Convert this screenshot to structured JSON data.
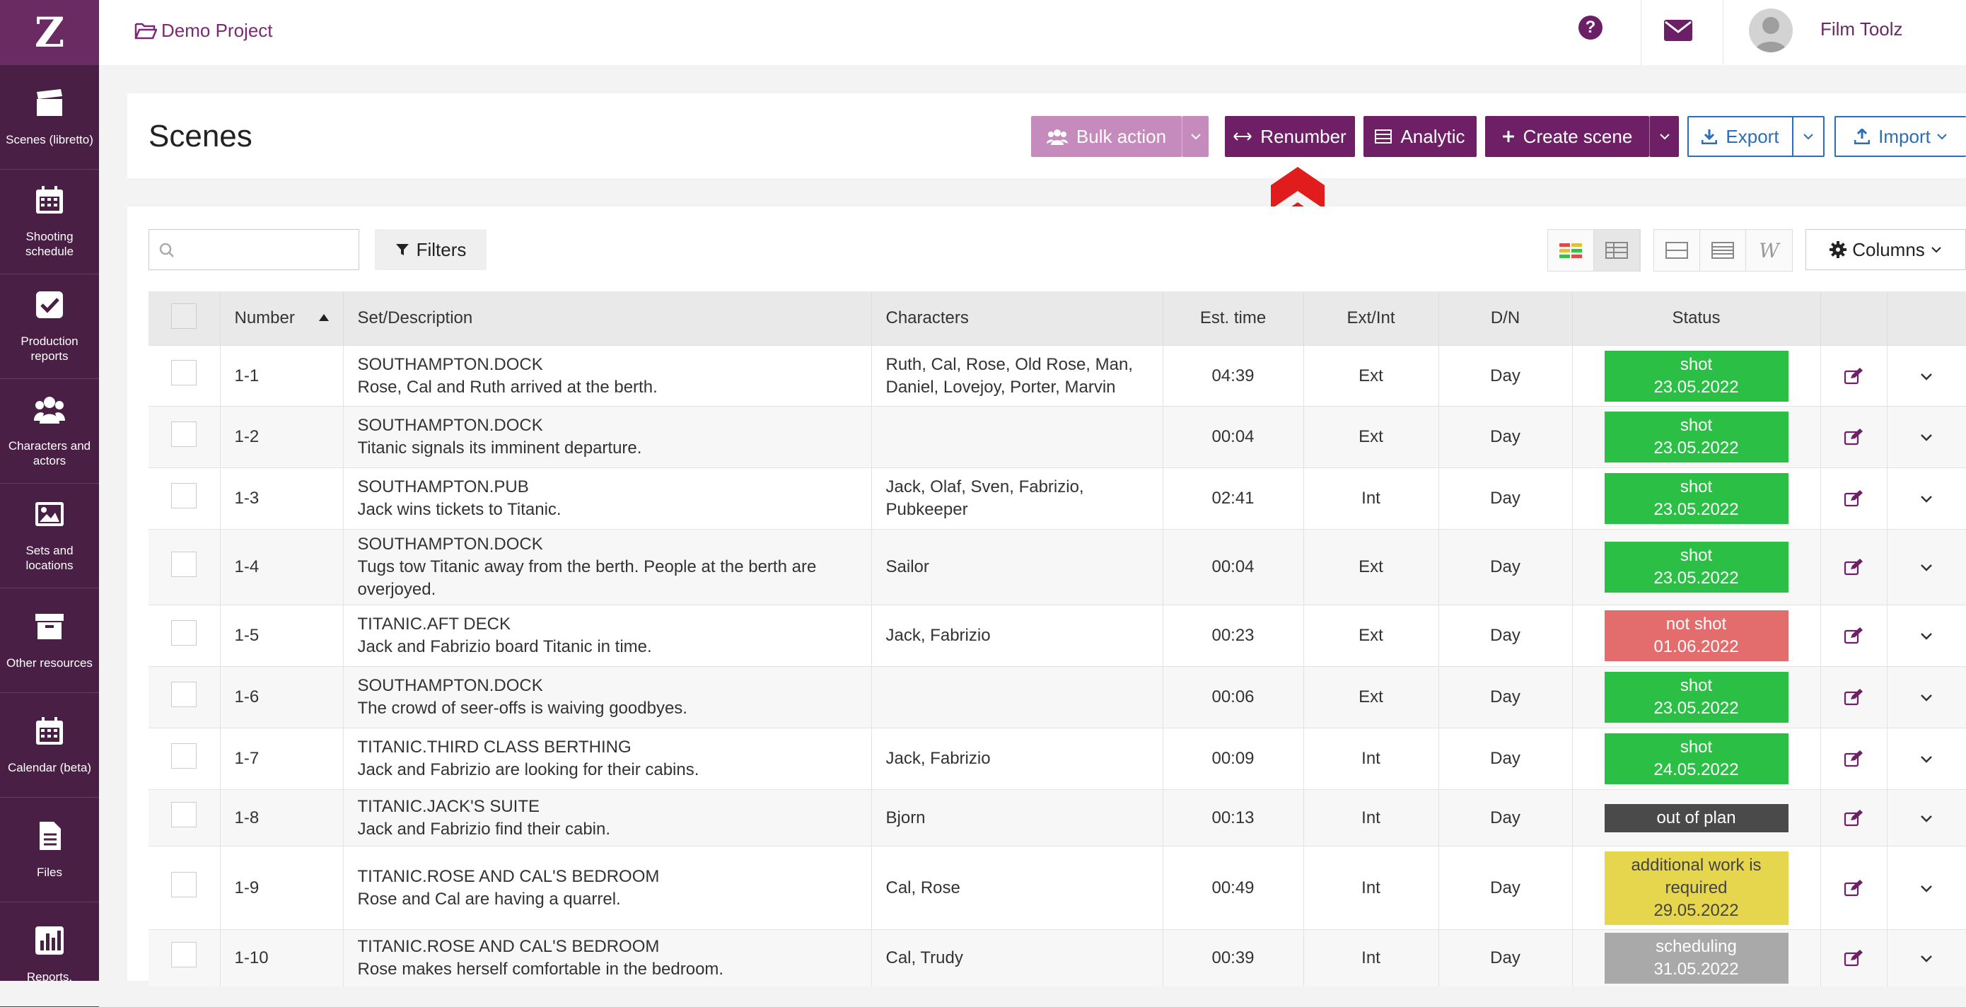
{
  "brand_logo": "Z",
  "sidebar": {
    "items": [
      {
        "label": "Scenes (libretto)",
        "icon": "clapperboard-icon"
      },
      {
        "label": "Shooting schedule",
        "icon": "calendar-icon"
      },
      {
        "label": "Production reports",
        "icon": "checkbox-icon"
      },
      {
        "label": "Characters and actors",
        "icon": "users-icon"
      },
      {
        "label": "Sets and locations",
        "icon": "image-icon"
      },
      {
        "label": "Other resources",
        "icon": "archive-icon"
      },
      {
        "label": "Calendar (beta)",
        "icon": "calendar-icon"
      },
      {
        "label": "Files",
        "icon": "file-icon"
      },
      {
        "label": "Reports,",
        "icon": "bar-chart-icon"
      }
    ]
  },
  "topbar": {
    "project": "Demo Project",
    "help_glyph": "?",
    "user_name": "Film Toolz"
  },
  "header": {
    "title": "Scenes",
    "bulk_action": "Bulk action",
    "renumber": "Renumber",
    "analytic": "Analytic",
    "create_scene": "Create scene",
    "export": "Export",
    "import": "Import"
  },
  "toolbar": {
    "search_placeholder": "",
    "filters": "Filters",
    "columns": "Columns",
    "text_view_glyph": "W"
  },
  "table": {
    "columns": [
      "Number",
      "Set/Description",
      "Characters",
      "Est. time",
      "Ext/Int",
      "D/N",
      "Status"
    ],
    "rows": [
      {
        "number": "1-1",
        "set": "SOUTHAMPTON.DOCK",
        "desc": "Rose, Cal and Ruth arrived at the berth.",
        "characters": "Ruth, Cal, Rose, Old Rose, Man, Daniel, Lovejoy, Porter, Marvin",
        "time": "04:39",
        "extint": "Ext",
        "dn": "Day",
        "status": "shot",
        "status_date": "23.05.2022",
        "status_color": "#2cbf45"
      },
      {
        "number": "1-2",
        "set": "SOUTHAMPTON.DOCK",
        "desc": "Titanic signals its imminent departure.",
        "characters": "",
        "time": "00:04",
        "extint": "Ext",
        "dn": "Day",
        "status": "shot",
        "status_date": "23.05.2022",
        "status_color": "#2cbf45"
      },
      {
        "number": "1-3",
        "set": "SOUTHAMPTON.PUB",
        "desc": "Jack wins tickets to Titanic.",
        "characters": "Jaсk, Olaf, Sven, Fabrizio, Pubkeeper",
        "time": "02:41",
        "extint": "Int",
        "dn": "Day",
        "status": "shot",
        "status_date": "23.05.2022",
        "status_color": "#2cbf45"
      },
      {
        "number": "1-4",
        "set": "SOUTHAMPTON.DOCK",
        "desc": "Tugs tow Titanic away from the berth. People at the berth are overjoyed.",
        "characters": "Sailor",
        "time": "00:04",
        "extint": "Ext",
        "dn": "Day",
        "status": "shot",
        "status_date": "23.05.2022",
        "status_color": "#2cbf45"
      },
      {
        "number": "1-5",
        "set": "TITANIC.AFT DECK",
        "desc": "Jack and Fabrizio board Titanic in time.",
        "characters": "Jaсk, Fabrizio",
        "time": "00:23",
        "extint": "Ext",
        "dn": "Day",
        "status": "not shot",
        "status_date": "01.06.2022",
        "status_color": "#e36c6c"
      },
      {
        "number": "1-6",
        "set": "SOUTHAMPTON.DOCK",
        "desc": "The crowd of seer-offs is waiving goodbyes.",
        "characters": "",
        "time": "00:06",
        "extint": "Ext",
        "dn": "Day",
        "status": "shot",
        "status_date": "23.05.2022",
        "status_color": "#2cbf45"
      },
      {
        "number": "1-7",
        "set": "TITANIC.THIRD CLASS BERTHING",
        "desc": "Jack and Fabrizio are looking for their cabins.",
        "characters": "Jaсk, Fabrizio",
        "time": "00:09",
        "extint": "Int",
        "dn": "Day",
        "status": "shot",
        "status_date": "24.05.2022",
        "status_color": "#2cbf45"
      },
      {
        "number": "1-8",
        "set": "TITANIC.JACK'S SUITE",
        "desc": "Jack and Fabrizio find their cabin.",
        "characters": "Bjorn",
        "time": "00:13",
        "extint": "Int",
        "dn": "Day",
        "status": "out of plan",
        "status_date": "",
        "status_color": "#4a4a4a"
      },
      {
        "number": "1-9",
        "set": "TITANIC.ROSE AND CAL'S BEDROOM",
        "desc": "Rose and Cal are having a quarrel.",
        "characters": "Cal, Rose",
        "time": "00:49",
        "extint": "Int",
        "dn": "Day",
        "status": "additional work is required",
        "status_date": "29.05.2022",
        "status_color": "#e6d64e",
        "status_text_color": "#444"
      },
      {
        "number": "1-10",
        "set": "TITANIC.ROSE AND CAL'S BEDROOM",
        "desc": "Rose makes herself comfortable in the bedroom.",
        "characters": "Cal, Trudy",
        "time": "00:39",
        "extint": "Int",
        "dn": "Day",
        "status": "scheduling",
        "status_date": "31.05.2022",
        "status_color": "#a9a9a9"
      }
    ]
  },
  "colors": {
    "sidebar_bg": "#4a1f45",
    "accent": "#6e1f66",
    "export_blue": "#2a6db8",
    "arrow_red": "#e01c1c"
  }
}
